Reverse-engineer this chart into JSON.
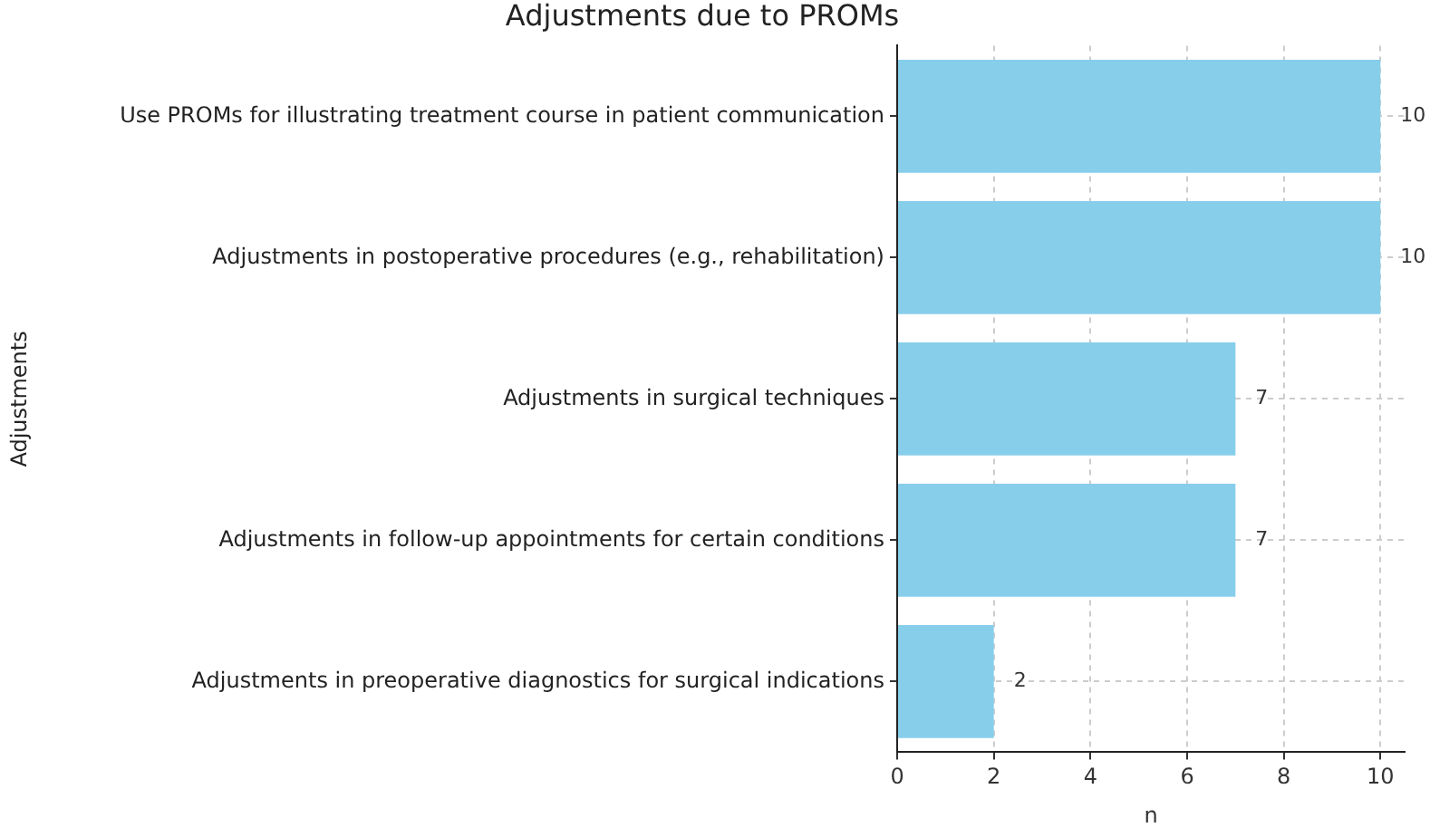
{
  "chart_data": {
    "type": "bar",
    "orientation": "horizontal",
    "title": "Adjustments due to PROMs",
    "xlabel": "n",
    "ylabel": "Adjustments",
    "categories": [
      "Use PROMs for illustrating treatment course in patient communication",
      "Adjustments in postoperative procedures (e.g., rehabilitation)",
      "Adjustments in surgical techniques",
      "Adjustments in follow-up appointments for certain conditions",
      "Adjustments in preoperative diagnostics for surgical indications"
    ],
    "values": [
      10,
      10,
      7,
      7,
      2
    ],
    "color": "#87ceeb",
    "xlim": [
      0,
      10.5
    ],
    "xticks": [
      0,
      2,
      4,
      6,
      8,
      10
    ],
    "grid": true,
    "data_labels": true
  }
}
